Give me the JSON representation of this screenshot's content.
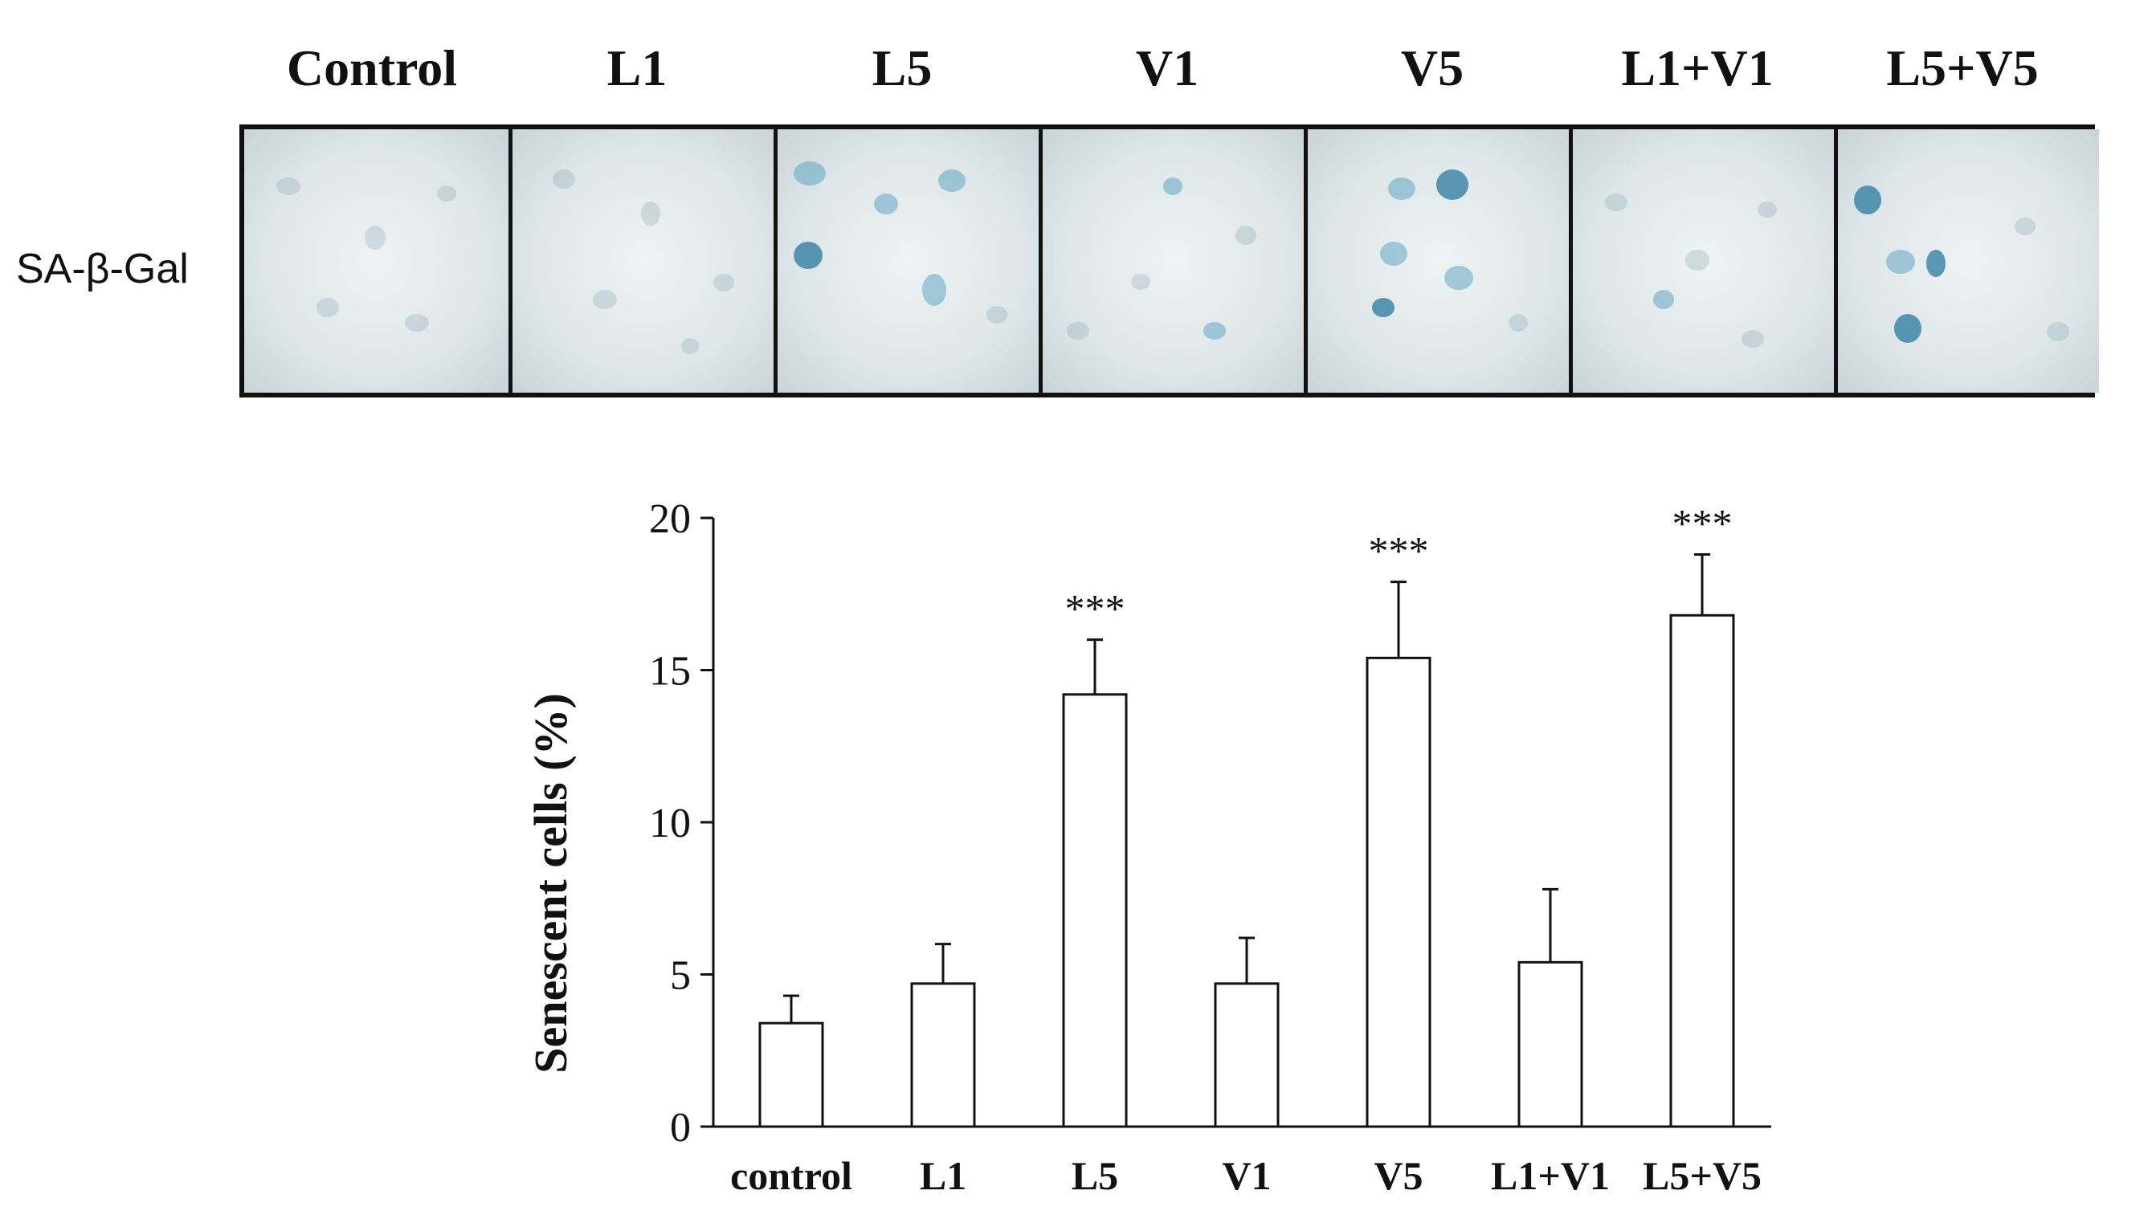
{
  "panel_headers": [
    "Control",
    "L1",
    "L5",
    "V1",
    "V5",
    "L1+V1",
    "L5+V5"
  ],
  "row_label": "SA-β-Gal",
  "chart_data": {
    "type": "bar",
    "title": "",
    "xlabel": "",
    "ylabel": "Senescent cells (%)",
    "categories": [
      "control",
      "L1",
      "L5",
      "V1",
      "V5",
      "L1+V1",
      "L5+V5"
    ],
    "values": [
      3.4,
      4.7,
      14.2,
      4.7,
      15.4,
      5.4,
      16.8
    ],
    "error": [
      0.9,
      1.3,
      1.8,
      1.5,
      2.5,
      2.4,
      2.0
    ],
    "significance": [
      "",
      "",
      "***",
      "",
      "***",
      "",
      "***"
    ],
    "ylim": [
      0,
      20
    ],
    "yticks": [
      0,
      5,
      10,
      15,
      20
    ],
    "bar_color": "#ffffff",
    "edge_color": "#111111"
  }
}
